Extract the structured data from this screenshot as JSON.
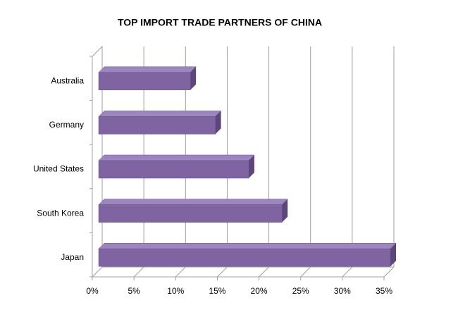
{
  "chart_data": {
    "type": "bar3d",
    "orientation": "horizontal",
    "title": "TOP IMPORT TRADE PARTNERS OF CHINA",
    "categories": [
      "Australia",
      "Germany",
      "United States",
      "South Korea",
      "Japan"
    ],
    "values": [
      11,
      14,
      18,
      22,
      35
    ],
    "color": "#8064a2",
    "xlim": [
      0,
      35
    ],
    "xticks": [
      {
        "value": 0,
        "label": "0%"
      },
      {
        "value": 5,
        "label": "5%"
      },
      {
        "value": 10,
        "label": "10%"
      },
      {
        "value": 15,
        "label": "15%"
      },
      {
        "value": 20,
        "label": "20%"
      },
      {
        "value": 25,
        "label": "25%"
      },
      {
        "value": 30,
        "label": "30%"
      },
      {
        "value": 35,
        "label": "35%"
      }
    ],
    "grid": true
  }
}
